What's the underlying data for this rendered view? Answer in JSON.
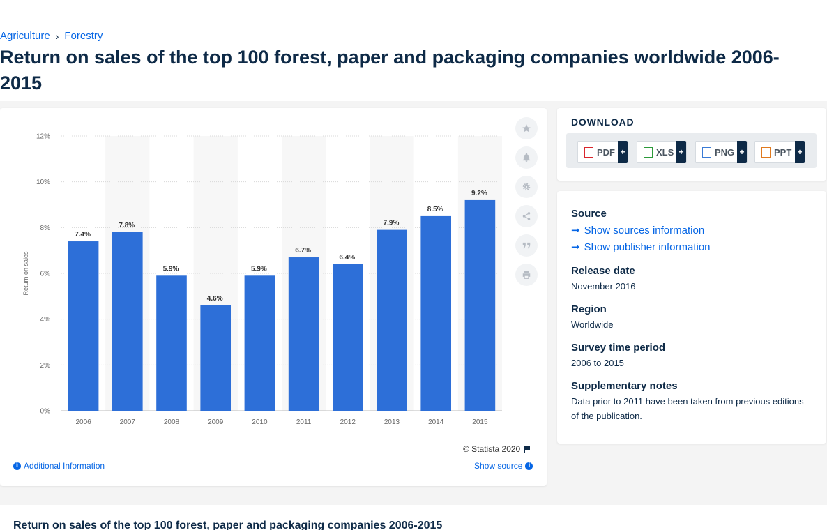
{
  "breadcrumb": {
    "items": [
      "Agriculture",
      "Forestry"
    ],
    "separator": "›"
  },
  "page_title": "Return on sales of the top 100 forest, paper and packaging companies worldwide 2006-2015",
  "chart_tools": [
    "star-icon",
    "bell-icon",
    "gear-icon",
    "share-icon",
    "quote-icon",
    "print-icon"
  ],
  "chart_footer": {
    "credit": "© Statista 2020",
    "additional_info": "Additional Information",
    "show_source": "Show source"
  },
  "download": {
    "title": "DOWNLOAD",
    "buttons": [
      {
        "label": "PDF",
        "color": "#d9262d"
      },
      {
        "label": "XLS",
        "color": "#2c9a3a"
      },
      {
        "label": "PNG",
        "color": "#3a7bd5"
      },
      {
        "label": "PPT",
        "color": "#e07a1f"
      }
    ],
    "plus": "+"
  },
  "meta": {
    "source_label": "Source",
    "show_sources": "Show sources information",
    "show_publisher": "Show publisher information",
    "release_label": "Release date",
    "release_value": "November 2016",
    "region_label": "Region",
    "region_value": "Worldwide",
    "survey_label": "Survey time period",
    "survey_value": "2006 to 2015",
    "notes_label": "Supplementary notes",
    "notes_value": "Data prior to 2011 have been taken from previous editions of the publication."
  },
  "bottom_title": "Return on sales of the top 100 forest, paper and packaging companies 2006-2015",
  "chart_data": {
    "type": "bar",
    "categories": [
      "2006",
      "2007",
      "2008",
      "2009",
      "2010",
      "2011",
      "2012",
      "2013",
      "2014",
      "2015"
    ],
    "values": [
      7.4,
      7.8,
      5.9,
      4.6,
      5.9,
      6.7,
      6.4,
      7.9,
      8.5,
      9.2
    ],
    "data_labels": [
      "7.4%",
      "7.8%",
      "5.9%",
      "4.6%",
      "5.9%",
      "6.7%",
      "6.4%",
      "7.9%",
      "8.5%",
      "9.2%"
    ],
    "title": "",
    "xlabel": "",
    "ylabel": "Return on sales",
    "ylim": [
      0,
      12
    ],
    "yticks": [
      0,
      2,
      4,
      6,
      8,
      10,
      12
    ],
    "ytick_labels": [
      "0%",
      "2%",
      "4%",
      "6%",
      "8%",
      "10%",
      "12%"
    ],
    "bar_color": "#2d6fd8",
    "grid": true,
    "legend": "none"
  }
}
